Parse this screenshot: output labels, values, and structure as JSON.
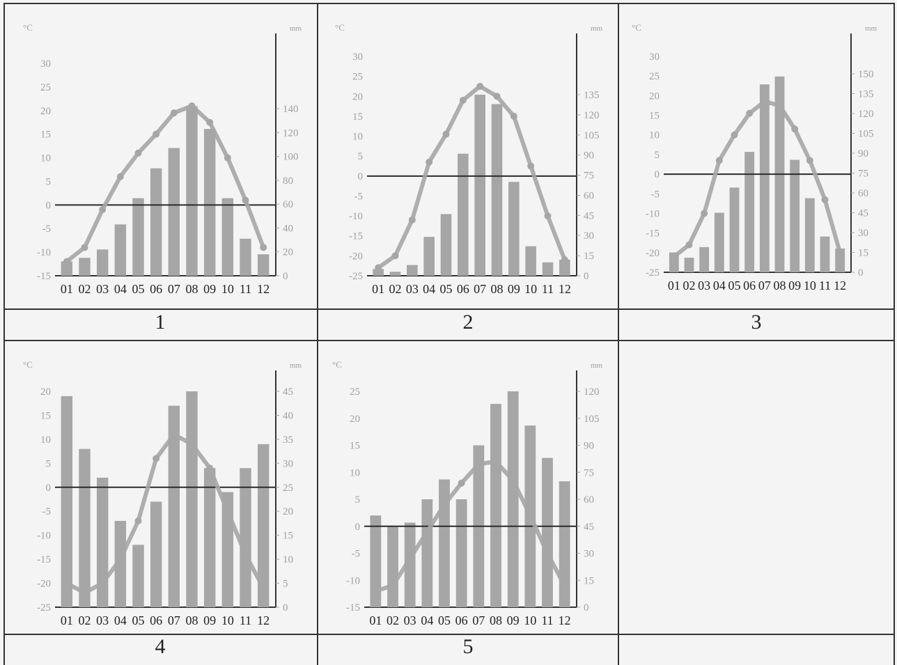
{
  "colors": {
    "temperature_line": "#a6a6a6",
    "precipitation_bar": "#a6a6a6",
    "axis_text": "#a0a0a0",
    "zero_line": "#2a2a2a"
  },
  "panels": [
    {
      "label": "1"
    },
    {
      "label": "2"
    },
    {
      "label": "3"
    },
    {
      "label": "4"
    },
    {
      "label": "5"
    }
  ],
  "chart_data": [
    {
      "type": "bar",
      "label": "1",
      "categories": [
        "01",
        "02",
        "03",
        "04",
        "05",
        "06",
        "07",
        "08",
        "09",
        "10",
        "11",
        "12"
      ],
      "temp_unit": "°C",
      "precip_unit": "mm",
      "temp_ticks": [
        "30",
        "25",
        "20",
        "15",
        "10",
        "5",
        "0",
        "-5",
        "-10",
        "-15"
      ],
      "precip_ticks": [
        "140",
        "120",
        "100",
        "80",
        "60",
        "40",
        "20",
        "0"
      ],
      "temp_range": [
        -15,
        30
      ],
      "precip_range": [
        0,
        200
      ],
      "zero_temp": 0,
      "series": [
        {
          "axis": "precipitation",
          "values": [
            12,
            15,
            22,
            43,
            65,
            90,
            107,
            142,
            123,
            65,
            31,
            18
          ]
        },
        {
          "axis": "temperature",
          "values": [
            -12,
            -9,
            -1,
            6,
            11,
            15,
            19.5,
            21,
            17.5,
            10,
            1,
            -9
          ]
        }
      ]
    },
    {
      "type": "bar",
      "label": "2",
      "categories": [
        "01",
        "02",
        "03",
        "04",
        "05",
        "06",
        "07",
        "08",
        "09",
        "10",
        "11",
        "12"
      ],
      "temp_unit": "°C",
      "precip_unit": "mm",
      "temp_ticks": [
        "30",
        "25",
        "20",
        "15",
        "10",
        "5",
        "0",
        "-5",
        "-10",
        "-15",
        "-20",
        "-25"
      ],
      "precip_ticks": [
        "135",
        "120",
        "105",
        "90",
        "75",
        "60",
        "45",
        "30",
        "15",
        "0"
      ],
      "temp_range": [
        -25,
        30
      ],
      "precip_range": [
        0,
        165
      ],
      "zero_temp": 0,
      "series": [
        {
          "axis": "precipitation",
          "values": [
            5,
            3,
            8,
            29,
            46,
            91,
            135,
            128,
            70,
            22,
            10,
            12
          ]
        },
        {
          "axis": "temperature",
          "values": [
            -23,
            -20,
            -11,
            3.5,
            10.5,
            19,
            22.5,
            20,
            15,
            2.5,
            -10,
            -21
          ]
        }
      ]
    },
    {
      "type": "bar",
      "label": "3",
      "categories": [
        "01",
        "02",
        "03",
        "04",
        "05",
        "06",
        "07",
        "08",
        "09",
        "10",
        "11",
        "12"
      ],
      "temp_unit": "°C",
      "precip_unit": "mm",
      "temp_ticks": [
        "30",
        "25",
        "20",
        "15",
        "10",
        "5",
        "0",
        "-5",
        "-10",
        "-15",
        "-20",
        "-25"
      ],
      "precip_ticks": [
        "150",
        "135",
        "120",
        "105",
        "90",
        "75",
        "60",
        "45",
        "30",
        "15",
        "0"
      ],
      "temp_range": [
        -25,
        30
      ],
      "precip_range": [
        0,
        165
      ],
      "zero_temp": 0,
      "series": [
        {
          "axis": "precipitation",
          "values": [
            15,
            11,
            19,
            45,
            64,
            91,
            142,
            148,
            85,
            56,
            27,
            18
          ]
        },
        {
          "axis": "temperature",
          "values": [
            -21,
            -18,
            -10,
            3.5,
            10,
            15.5,
            18.5,
            17.5,
            11.5,
            3.5,
            -6.5,
            -20
          ]
        }
      ]
    },
    {
      "type": "bar",
      "label": "4",
      "categories": [
        "01",
        "02",
        "03",
        "04",
        "05",
        "06",
        "07",
        "08",
        "09",
        "10",
        "11",
        "12"
      ],
      "temp_unit": "°C",
      "precip_unit": "mm",
      "temp_ticks": [
        "20",
        "15",
        "10",
        "5",
        "0",
        "-5",
        "-10",
        "-15",
        "-20",
        "-25"
      ],
      "precip_ticks": [
        "45",
        "40",
        "35",
        "30",
        "25",
        "20",
        "15",
        "10",
        "5",
        "0"
      ],
      "temp_range": [
        -25,
        20
      ],
      "precip_range": [
        0,
        45
      ],
      "zero_temp": 0,
      "series": [
        {
          "axis": "precipitation",
          "values": [
            44,
            33,
            27,
            18,
            13,
            22,
            42,
            45,
            29,
            24,
            29,
            34
          ]
        },
        {
          "axis": "temperature",
          "values": [
            -20,
            -22,
            -20,
            -15,
            -7,
            6,
            11,
            9,
            4,
            -5,
            -14,
            -21
          ]
        }
      ]
    },
    {
      "type": "bar",
      "label": "5",
      "categories": [
        "01",
        "02",
        "03",
        "04",
        "05",
        "06",
        "07",
        "08",
        "09",
        "10",
        "11",
        "12"
      ],
      "temp_unit": "°C",
      "precip_unit": "mm",
      "temp_ticks": [
        "25",
        "20",
        "15",
        "10",
        "5",
        "0",
        "-5",
        "-10",
        "-15"
      ],
      "precip_ticks": [
        "120",
        "105",
        "90",
        "75",
        "60",
        "45",
        "30",
        "15",
        "0"
      ],
      "temp_range": [
        -15,
        25
      ],
      "precip_range": [
        0,
        120
      ],
      "zero_temp": 0,
      "series": [
        {
          "axis": "precipitation",
          "values": [
            51,
            45,
            47,
            60,
            71,
            60,
            90,
            113,
            120,
            101,
            83,
            70
          ]
        },
        {
          "axis": "temperature",
          "values": [
            -12,
            -11,
            -6,
            -1,
            4,
            8,
            11.5,
            12,
            8.5,
            2,
            -5,
            -11
          ]
        }
      ]
    }
  ]
}
